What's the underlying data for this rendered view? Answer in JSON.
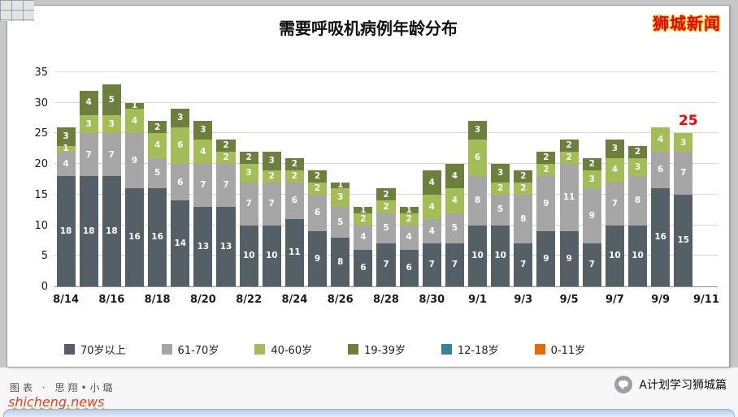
{
  "page": {
    "brand_watermark": "狮城新闻",
    "footer": {
      "credit": "图表 · 思翔•小璐",
      "site_watermark": "shicheng.news",
      "account_name": "A计划学习狮城篇"
    }
  },
  "chart_data": {
    "type": "bar",
    "stacked": true,
    "title": "需要呼吸机病例年龄分布",
    "grid": true,
    "legend_position": "bottom",
    "ylim": [
      0,
      35
    ],
    "y_ticks": [
      0,
      5,
      10,
      15,
      20,
      25,
      30,
      35
    ],
    "total_slots": 29,
    "categories": [
      "8/14",
      "8/15",
      "8/16",
      "8/17",
      "8/18",
      "8/19",
      "8/20",
      "8/21",
      "8/22",
      "8/23",
      "8/24",
      "8/25",
      "8/26",
      "8/27",
      "8/28",
      "8/29",
      "8/30",
      "8/31",
      "9/1",
      "9/2",
      "9/3",
      "9/4",
      "9/5",
      "9/6",
      "9/7",
      "9/8",
      "9/9",
      "9/10"
    ],
    "x_tick_labels": [
      "8/14",
      "8/16",
      "8/18",
      "8/20",
      "8/22",
      "8/24",
      "8/26",
      "8/28",
      "8/30",
      "9/1",
      "9/3",
      "9/5",
      "9/7",
      "9/9",
      "9/11"
    ],
    "series": [
      {
        "name": "70岁以上",
        "color": "#556066",
        "values": [
          18,
          18,
          18,
          16,
          16,
          14,
          13,
          13,
          10,
          10,
          11,
          9,
          8,
          6,
          7,
          6,
          7,
          7,
          10,
          10,
          7,
          9,
          9,
          7,
          10,
          10,
          16,
          15
        ]
      },
      {
        "name": "61-70岁",
        "color": "#a6a6a6",
        "values": [
          4,
          7,
          7,
          9,
          5,
          6,
          7,
          7,
          7,
          7,
          6,
          6,
          5,
          4,
          5,
          4,
          4,
          5,
          8,
          5,
          8,
          9,
          11,
          9,
          7,
          8,
          6,
          7
        ]
      },
      {
        "name": "40-60岁",
        "color": "#a3bd57",
        "values": [
          1,
          3,
          3,
          4,
          4,
          6,
          4,
          2,
          3,
          2,
          2,
          2,
          3,
          2,
          2,
          2,
          4,
          4,
          6,
          2,
          2,
          2,
          2,
          3,
          4,
          3,
          4,
          3
        ]
      },
      {
        "name": "19-39岁",
        "color": "#6d7f3c",
        "values": [
          3,
          4,
          5,
          1,
          2,
          3,
          3,
          2,
          2,
          3,
          2,
          2,
          1,
          1,
          2,
          1,
          4,
          4,
          3,
          3,
          2,
          2,
          2,
          2,
          3,
          2,
          0,
          0
        ]
      },
      {
        "name": "12-18岁",
        "color": "#31849b",
        "values": [
          0,
          0,
          0,
          0,
          0,
          0,
          0,
          0,
          0,
          0,
          0,
          0,
          0,
          0,
          0,
          0,
          0,
          0,
          0,
          0,
          0,
          0,
          0,
          0,
          0,
          0,
          0,
          0
        ]
      },
      {
        "name": "0-11岁",
        "color": "#e36c09",
        "values": [
          0,
          0,
          0,
          0,
          0,
          0,
          0,
          0,
          0,
          0,
          0,
          0,
          0,
          0,
          0,
          0,
          0,
          0,
          0,
          0,
          0,
          0,
          0,
          0,
          0,
          0,
          0,
          0
        ]
      }
    ],
    "annotation": {
      "text": "25",
      "color": "#ff0000",
      "bar_index": 27
    }
  }
}
